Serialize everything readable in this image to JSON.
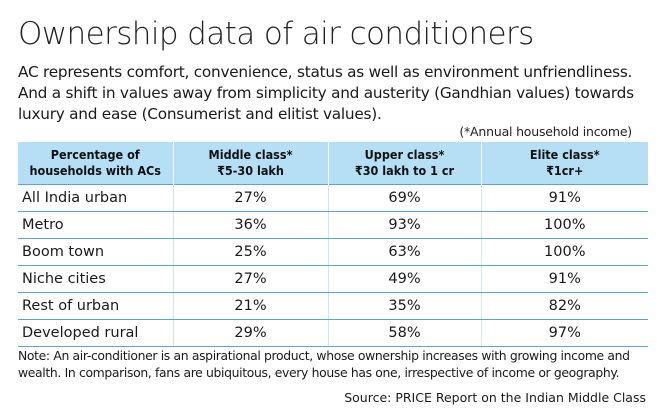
{
  "title": "Ownership data of  air conditioners",
  "intro": "AC represents comfort, convenience, status as well as environment unfriendliness. And a shift in values away from simplicity and austerity (Gandhian values) towards luxury and ease (Consumerist and elitist values).",
  "footnote": "(*Annual household income)",
  "header_color": "#b5dff4",
  "rule_color": "#5aa5cf",
  "chart_data": {
    "type": "table",
    "columns": [
      [
        "Percentage of",
        "households with ACs"
      ],
      [
        "Middle class*",
        "₹5-30 lakh"
      ],
      [
        "Upper class*",
        "₹30 lakh to 1 cr"
      ],
      [
        "Elite class*",
        "₹1cr+"
      ]
    ],
    "rows": [
      [
        "All India urban",
        "27%",
        "69%",
        "91%"
      ],
      [
        "Metro",
        "36%",
        "93%",
        "100%"
      ],
      [
        "Boom town",
        "25%",
        "63%",
        "100%"
      ],
      [
        "Niche cities",
        "27%",
        "49%",
        "91%"
      ],
      [
        "Rest of urban",
        "21%",
        "35%",
        "82%"
      ],
      [
        "Developed rural",
        "29%",
        "58%",
        "97%"
      ]
    ]
  },
  "note": "Note: An air-conditioner is an aspirational product, whose ownership increases with growing income and wealth. In comparison, fans are ubiquitous, every house has one, irrespective of income or geography.",
  "source": "Source: PRICE Report on the Indian Middle Class"
}
